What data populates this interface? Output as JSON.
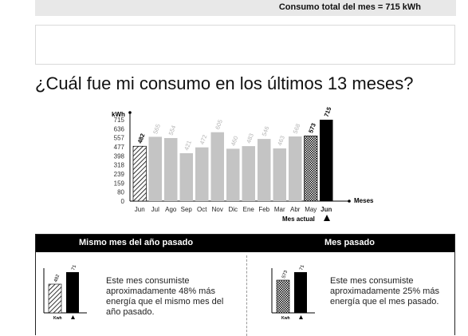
{
  "header": {
    "total_label": "Consumo total del mes = 715 kWh"
  },
  "question": "¿Cuál fue mi consumo en los últimos 13 meses?",
  "chart_data": {
    "type": "bar",
    "ylabel": "kWh",
    "xlabel": "Meses",
    "y_ticks": [
      "715",
      "636",
      "557",
      "477",
      "398",
      "318",
      "239",
      "159",
      "80",
      "0"
    ],
    "ylim": [
      0,
      715
    ],
    "categories": [
      "Jun",
      "Jul",
      "Ago",
      "Sep",
      "Oct",
      "Nov",
      "Dic",
      "Ene",
      "Feb",
      "Mar",
      "Abr",
      "May",
      "Jun"
    ],
    "values": [
      482,
      565,
      554,
      421,
      472,
      605,
      460,
      483,
      546,
      463,
      568,
      573,
      715
    ],
    "styles": [
      "hatch",
      "gray",
      "gray",
      "gray",
      "gray",
      "gray",
      "gray",
      "gray",
      "gray",
      "gray",
      "gray",
      "dots",
      "black"
    ],
    "current_label": "Mes actual",
    "colors": {
      "gray": "#c4c4c4",
      "black": "#000000",
      "gray_label": "#b5b5b5"
    }
  },
  "comparison": {
    "left": {
      "title": "Mismo mes del año pasado",
      "bar1_value": "482",
      "bar2_value": "715",
      "axis_label": "Kwh",
      "text": "Este mes consumiste aproximadamente 48% más energía que el mismo mes del año pasado."
    },
    "right": {
      "title": "Mes pasado",
      "bar1_value": "573",
      "bar2_value": "715",
      "axis_label": "Kwh",
      "text": "Este mes consumiste aproximadamente 25% más energía que el mes pasado."
    }
  }
}
